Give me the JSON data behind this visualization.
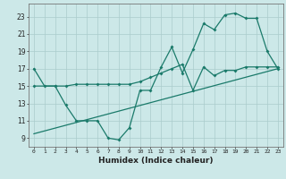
{
  "xlabel": "Humidex (Indice chaleur)",
  "background_color": "#cce8e8",
  "grid_color": "#aacccc",
  "line_color": "#1a7a6a",
  "xlim": [
    -0.5,
    23.5
  ],
  "ylim": [
    8,
    24.5
  ],
  "xticks": [
    0,
    1,
    2,
    3,
    4,
    5,
    6,
    7,
    8,
    9,
    10,
    11,
    12,
    13,
    14,
    15,
    16,
    17,
    18,
    19,
    20,
    21,
    22,
    23
  ],
  "yticks": [
    9,
    11,
    13,
    15,
    17,
    19,
    21,
    23
  ],
  "series1_x": [
    0,
    1,
    2,
    3,
    4,
    5,
    6,
    7,
    8,
    9,
    10,
    11,
    12,
    13,
    14,
    15,
    16,
    17,
    18,
    19,
    20,
    21,
    22,
    23
  ],
  "series1_y": [
    17,
    15,
    15,
    12.8,
    11,
    11,
    11,
    9,
    8.8,
    10.2,
    14.5,
    14.5,
    17.2,
    19.5,
    16.5,
    19.2,
    22.2,
    21.5,
    23.2,
    23.4,
    22.8,
    22.8,
    19.0,
    17.0
  ],
  "series2_x": [
    0,
    2,
    3,
    4,
    5,
    6,
    7,
    8,
    9,
    10,
    11,
    12,
    13,
    14,
    15,
    16,
    17,
    18,
    19,
    20,
    21,
    22,
    23
  ],
  "series2_y": [
    15,
    15,
    15,
    15.2,
    15.2,
    15.2,
    15.2,
    15.2,
    15.2,
    15.5,
    16.0,
    16.5,
    17.0,
    17.5,
    14.5,
    17.2,
    16.2,
    16.8,
    16.8,
    17.2,
    17.2,
    17.2,
    17.2
  ],
  "series3_x": [
    0,
    23
  ],
  "series3_y": [
    9.5,
    17.0
  ]
}
